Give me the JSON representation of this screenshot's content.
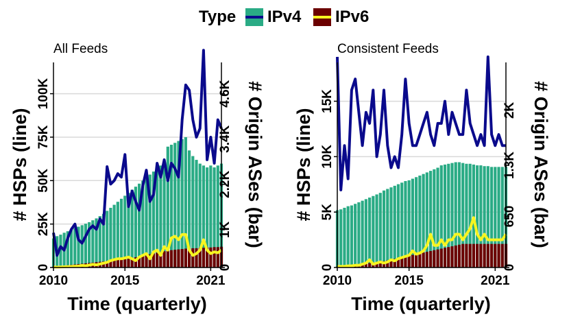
{
  "legend": {
    "title": "Type",
    "items": [
      {
        "label": "IPv4",
        "fill": "#2aab85",
        "line": "#0a0a8c"
      },
      {
        "label": "IPv6",
        "fill": "#6b0000",
        "line": "#f7f520"
      }
    ]
  },
  "chart_data": [
    {
      "type": "bar",
      "title": "All Feeds",
      "xlabel": "Time (quarterly)",
      "ylabel": "# HSPs (line)",
      "ylabel_right": "# Origin ASes (bar)",
      "x_start": 2010.0,
      "x_step": 0.25,
      "x_ticks": [
        2010,
        2015,
        2021
      ],
      "x_tick_labels": [
        "2010",
        "2015",
        "2021"
      ],
      "ylim": [
        0,
        118000
      ],
      "y_ticks": [
        0,
        25000,
        50000,
        75000,
        100000
      ],
      "y_tick_labels": [
        "0",
        "25K",
        "50K",
        "75K",
        "100K"
      ],
      "ylim_right": [
        0,
        5430
      ],
      "y2_ticks": [
        0,
        1000,
        2200,
        3400,
        4600
      ],
      "y2_tick_labels": [
        "0",
        "1K",
        "2.2K",
        "3.4K",
        "4.6K"
      ],
      "grid": true,
      "series": [
        {
          "name": "IPv4",
          "kind": "bar",
          "axis": "right",
          "color": "#2aab85",
          "values": [
            770,
            830,
            870,
            920,
            960,
            1000,
            1040,
            1080,
            1120,
            1160,
            1200,
            1250,
            1300,
            1360,
            1420,
            1500,
            1580,
            1660,
            1740,
            1820,
            1900,
            1980,
            2060,
            2140,
            2220,
            2300,
            2380,
            2460,
            2540,
            2620,
            2700,
            2780,
            3200,
            3250,
            3300,
            3350,
            3400,
            3450,
            3100,
            2950,
            2850,
            2750,
            2700,
            2650,
            2700,
            2650,
            2700,
            2750
          ]
        },
        {
          "name": "IPv6",
          "kind": "bar",
          "axis": "right",
          "color": "#6b0000",
          "values": [
            20,
            30,
            40,
            50,
            60,
            70,
            80,
            90,
            100,
            110,
            120,
            130,
            140,
            150,
            160,
            170,
            180,
            190,
            200,
            210,
            220,
            230,
            250,
            270,
            290,
            310,
            330,
            350,
            370,
            390,
            410,
            430,
            450,
            460,
            470,
            480,
            490,
            500,
            500,
            510,
            510,
            520,
            520,
            530,
            530,
            540,
            540,
            550
          ]
        },
        {
          "name": "IPv4",
          "kind": "line",
          "axis": "left",
          "color": "#0a0a8c",
          "values": [
            20000,
            7000,
            12000,
            10000,
            17000,
            22000,
            25000,
            16000,
            14000,
            18000,
            22000,
            24000,
            22000,
            28000,
            25000,
            58000,
            48000,
            50000,
            54000,
            52000,
            65000,
            35000,
            44000,
            38000,
            33000,
            47000,
            56000,
            38000,
            42000,
            60000,
            52000,
            62000,
            50000,
            60000,
            57000,
            52000,
            85000,
            105000,
            102000,
            85000,
            75000,
            80000,
            125000,
            62000,
            75000,
            60000,
            85000,
            80000
          ]
        },
        {
          "name": "IPv6",
          "kind": "line",
          "axis": "left",
          "color": "#f7f520",
          "values": [
            300,
            200,
            300,
            400,
            500,
            600,
            700,
            800,
            1200,
            1000,
            1400,
            1800,
            1500,
            2000,
            2500,
            3000,
            4000,
            4500,
            5000,
            5000,
            5500,
            6000,
            5000,
            4000,
            6000,
            7000,
            8000,
            5000,
            9000,
            10000,
            7000,
            12000,
            10000,
            17000,
            18000,
            16000,
            19000,
            19000,
            10000,
            7000,
            8000,
            10000,
            16000,
            10000,
            8000,
            9000,
            8500,
            10000
          ]
        }
      ]
    },
    {
      "type": "bar",
      "title": "Consistent Feeds",
      "xlabel": "Time (quarterly)",
      "ylabel": "# HSPs (line)",
      "ylabel_right": "# Origin ASes (bar)",
      "x_start": 2010.0,
      "x_step": 0.25,
      "x_ticks": [
        2010,
        2015,
        2021
      ],
      "x_tick_labels": [
        "2010",
        "2015",
        "2021"
      ],
      "ylim": [
        0,
        18500
      ],
      "y_ticks": [
        0,
        5000,
        10000,
        15000
      ],
      "y_tick_labels": [
        "0",
        "5K",
        "10K",
        "15K"
      ],
      "ylim_right": [
        0,
        2610
      ],
      "y2_ticks": [
        0,
        650,
        1300,
        2000
      ],
      "y2_tick_labels": [
        "0",
        "650",
        "1.3K",
        "2K"
      ],
      "grid": true,
      "series": [
        {
          "name": "IPv4",
          "kind": "bar",
          "axis": "right",
          "color": "#2aab85",
          "values": [
            730,
            740,
            760,
            780,
            790,
            810,
            830,
            850,
            870,
            890,
            910,
            930,
            950,
            980,
            1000,
            1020,
            1040,
            1060,
            1080,
            1100,
            1110,
            1130,
            1150,
            1170,
            1190,
            1210,
            1230,
            1250,
            1270,
            1300,
            1310,
            1320,
            1330,
            1340,
            1340,
            1330,
            1320,
            1320,
            1310,
            1300,
            1300,
            1290,
            1290,
            1280,
            1280,
            1280,
            1280,
            1280
          ]
        },
        {
          "name": "IPv6",
          "kind": "bar",
          "axis": "right",
          "color": "#6b0000",
          "values": [
            10,
            15,
            20,
            25,
            30,
            35,
            40,
            45,
            50,
            55,
            60,
            65,
            70,
            80,
            90,
            100,
            110,
            120,
            130,
            140,
            150,
            160,
            170,
            180,
            190,
            200,
            210,
            220,
            230,
            240,
            250,
            260,
            270,
            280,
            290,
            300,
            300,
            300,
            300,
            300,
            300,
            300,
            300,
            300,
            300,
            300,
            300,
            300
          ]
        },
        {
          "name": "IPv4",
          "kind": "line",
          "axis": "left",
          "color": "#0a0a8c",
          "values": [
            19000,
            7000,
            11000,
            8000,
            16000,
            17000,
            14000,
            11000,
            14000,
            13000,
            16000,
            10000,
            12000,
            16000,
            11000,
            9000,
            10000,
            9000,
            12000,
            17000,
            13000,
            11000,
            11000,
            12000,
            13000,
            14000,
            12000,
            11000,
            13000,
            13000,
            15000,
            12000,
            14000,
            13000,
            12000,
            12000,
            16000,
            13000,
            12000,
            11000,
            12000,
            11000,
            19000,
            12000,
            11000,
            12000,
            11000,
            11000
          ]
        },
        {
          "name": "IPv6",
          "kind": "line",
          "axis": "left",
          "color": "#f7f520",
          "values": [
            100,
            100,
            100,
            150,
            150,
            200,
            200,
            300,
            400,
            700,
            300,
            400,
            500,
            400,
            500,
            700,
            600,
            800,
            900,
            1000,
            1100,
            1500,
            1200,
            1300,
            1500,
            2000,
            3000,
            2000,
            2000,
            2500,
            2000,
            2500,
            2500,
            3000,
            3000,
            2500,
            3000,
            3500,
            4500,
            3000,
            2500,
            3000,
            2500,
            2500,
            2500,
            2500,
            2500,
            3000
          ]
        }
      ]
    }
  ]
}
